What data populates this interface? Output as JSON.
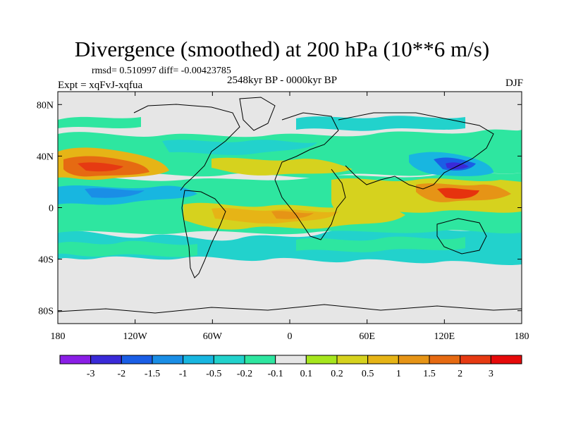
{
  "title": "Divergence (smoothed) at 200 hPa (10**6 m/s)",
  "stats": "rmsd= 0.510997 diff= -0.00423785",
  "experiment": "Expt = xqFvJ-xqfua",
  "period": "2548kyr BP - 0000kyr BP",
  "season": "DJF",
  "chart_data": {
    "type": "heatmap",
    "projection": "cylindrical-equidistant",
    "field": "Divergence (smoothed) at 200 hPa (10**6 m/s)",
    "lon_range": [
      -180,
      180
    ],
    "lat_range": [
      -90,
      90
    ],
    "x_ticks": [
      {
        "value": -180,
        "label": "180"
      },
      {
        "value": -120,
        "label": "120W"
      },
      {
        "value": -60,
        "label": "60W"
      },
      {
        "value": 0,
        "label": "0"
      },
      {
        "value": 60,
        "label": "60E"
      },
      {
        "value": 120,
        "label": "120E"
      },
      {
        "value": 180,
        "label": "180"
      }
    ],
    "y_ticks": [
      {
        "value": 80,
        "label": "80N"
      },
      {
        "value": 40,
        "label": "40N"
      },
      {
        "value": 0,
        "label": "0"
      },
      {
        "value": -40,
        "label": "40S"
      },
      {
        "value": -80,
        "label": "80S"
      }
    ],
    "colorbar": {
      "labels": [
        "-3",
        "-2",
        "-1.5",
        "-1",
        "-0.5",
        "-0.2",
        "-0.1",
        "0.1",
        "0.2",
        "0.5",
        "1",
        "1.5",
        "2",
        "3"
      ],
      "colors": [
        "#8a1ee6",
        "#3a2ad8",
        "#1a5ee6",
        "#1a8ee6",
        "#18b6e0",
        "#22d2cc",
        "#2ee6a0",
        "#e6e6e6",
        "#a6e61e",
        "#d6d21e",
        "#e6b416",
        "#e69416",
        "#e66a12",
        "#e63a12",
        "#e60a0a"
      ]
    },
    "features": [
      {
        "name": "North Pacific positive band",
        "lon": [
          -180,
          -130
        ],
        "lat": [
          15,
          45
        ],
        "level": "2"
      },
      {
        "name": "East Asia / West Pacific positive core",
        "lon": [
          100,
          165
        ],
        "lat": [
          0,
          25
        ],
        "level": "3"
      },
      {
        "name": "Japan negative core",
        "lon": [
          115,
          160
        ],
        "lat": [
          25,
          45
        ],
        "level": "-1.5"
      },
      {
        "name": "Central Pacific negative band",
        "lon": [
          -180,
          -100
        ],
        "lat": [
          -10,
          15
        ],
        "level": "-0.5"
      },
      {
        "name": "South Atlantic / Africa positive band",
        "lon": [
          -60,
          60
        ],
        "lat": [
          -30,
          0
        ],
        "level": "1"
      },
      {
        "name": "Southern Ocean negative band",
        "lon": [
          -180,
          180
        ],
        "lat": [
          -60,
          -30
        ],
        "level": "-0.5"
      }
    ]
  }
}
